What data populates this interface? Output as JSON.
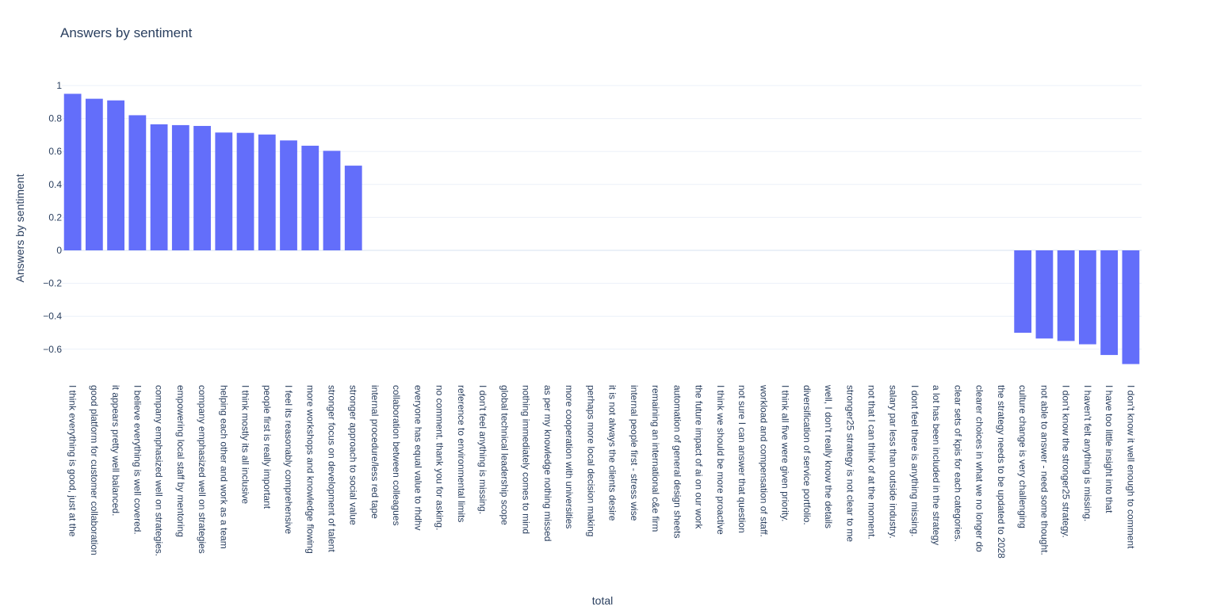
{
  "chart_data": {
    "type": "bar",
    "title": "Answers by sentiment",
    "xlabel": "total",
    "ylabel": "Answers by sentiment",
    "ylim": [
      -0.72,
      1.02
    ],
    "yticks": [
      1,
      0.8,
      0.6,
      0.4,
      0.2,
      0,
      -0.2,
      -0.4,
      -0.6
    ],
    "ytick_labels": [
      "1",
      "0.8",
      "0.6",
      "0.4",
      "0.2",
      "0",
      "−0.2",
      "−0.4",
      "−0.6"
    ],
    "grid": true,
    "bar_color": "#636efa",
    "categories": [
      "I think everything is good, just at the",
      "good platform for customer collaboration",
      "it appears pretty well balanced.",
      "I believe everything is well covered.",
      "company emphasized well on strategies.",
      "empowering local staff by mentoring",
      "company emphasized well on strategies",
      "helping each other and work as a team",
      "I think mostly its all inclusive",
      "people first is really important",
      "I feel its reasonably comprehensive",
      "more workshops and knowledge flowing",
      "stronger focus on development of talent",
      "stronger approach to social value",
      "internal procedure/less red tape",
      "collaboration between colleagues",
      "everyone has equal value to rhdhv",
      "no comment. thank you for asking.",
      "reference to environmental limits",
      "I don't feel anything is missing.",
      "global technical leadership scope",
      "nothing immediately comes to mind",
      "as per my knowledge nothing missed",
      "more cooperation with universities",
      "perhaps more local decision making",
      "it is not always the clients desire",
      "internal people first - stress wise",
      "remaining an international c&e firm",
      "automation of general design sheets",
      "the future impact of ai on our work",
      "I think we should be more proactive",
      "not sure I can answer that question",
      "workload and compensation of staff.",
      "I think all five were given priority.",
      "diversification of service portfolio.",
      "well, I don't really know the details",
      "stronger25 strategy is not clear to me",
      "not that I can think of at the moment.",
      "salary par less than outside industry.",
      "I dont feel there is anything missing.",
      "a lot has been included in the strategy",
      "clear sets of kpis for each categories.",
      "clearer choices in what we no longer do",
      "the strategy needs to be updated to 2028",
      "culture change is very challenging",
      "not able to answer - need some thought.",
      "I don't know the stronger25 strategy.",
      "I haven't felt anything is missing.",
      "I have too little insight into that",
      "I don't know it well enough to comment"
    ],
    "values": [
      0.95,
      0.92,
      0.91,
      0.82,
      0.765,
      0.76,
      0.755,
      0.715,
      0.713,
      0.703,
      0.667,
      0.635,
      0.604,
      0.514,
      0,
      0,
      0,
      0,
      0,
      0,
      0,
      0,
      0,
      0,
      0,
      0,
      0,
      0,
      0,
      0,
      0,
      0,
      0,
      0,
      0,
      0,
      0,
      0,
      0,
      0,
      0,
      0,
      0,
      0,
      -0.5,
      -0.535,
      -0.55,
      -0.57,
      -0.635,
      -0.69
    ]
  }
}
